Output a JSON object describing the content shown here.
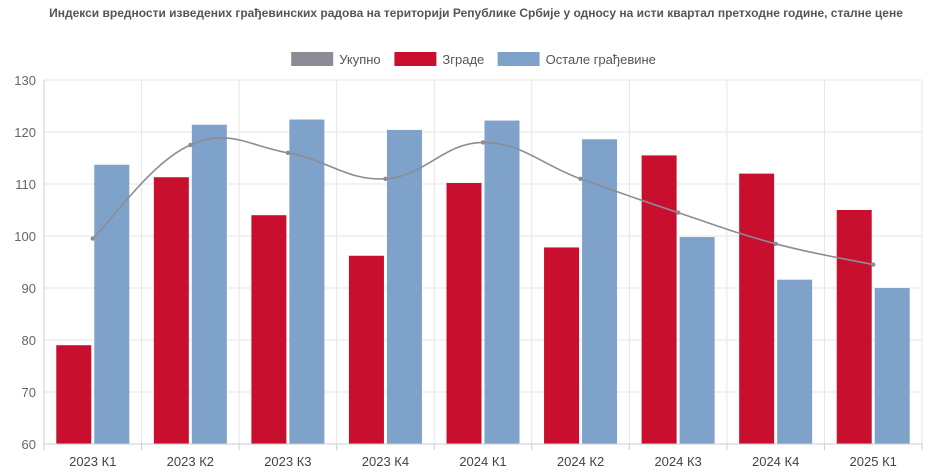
{
  "chart_data": {
    "type": "bar",
    "title": "Индекси вредности изведених грађевинских радова на територији Републике Србије у односу на исти квартал претходне године, сталне цене",
    "categories": [
      "2023 К1",
      "2023 К2",
      "2023 К3",
      "2023 К4",
      "2024 К1",
      "2024 К2",
      "2024 К3",
      "2024 К4",
      "2025 К1"
    ],
    "series": [
      {
        "name": "Укупно",
        "type": "line",
        "color": "#8c8c96",
        "values": [
          99.5,
          117.5,
          116,
          111,
          118,
          111,
          104.5,
          98.5,
          94.5
        ]
      },
      {
        "name": "Зграде",
        "type": "bar",
        "color": "#c8102e",
        "values": [
          79,
          111.3,
          104,
          96.2,
          110.2,
          97.8,
          115.5,
          112,
          105
        ]
      },
      {
        "name": "Остале грађевине",
        "type": "bar",
        "color": "#7fa2ca",
        "values": [
          113.7,
          121.4,
          122.4,
          120.4,
          122.2,
          118.6,
          99.8,
          91.6,
          90
        ]
      }
    ],
    "yticks": [
      60,
      70,
      80,
      90,
      100,
      110,
      120,
      130
    ],
    "ylim": [
      60,
      130
    ],
    "grid": true,
    "legend_position": "top"
  }
}
